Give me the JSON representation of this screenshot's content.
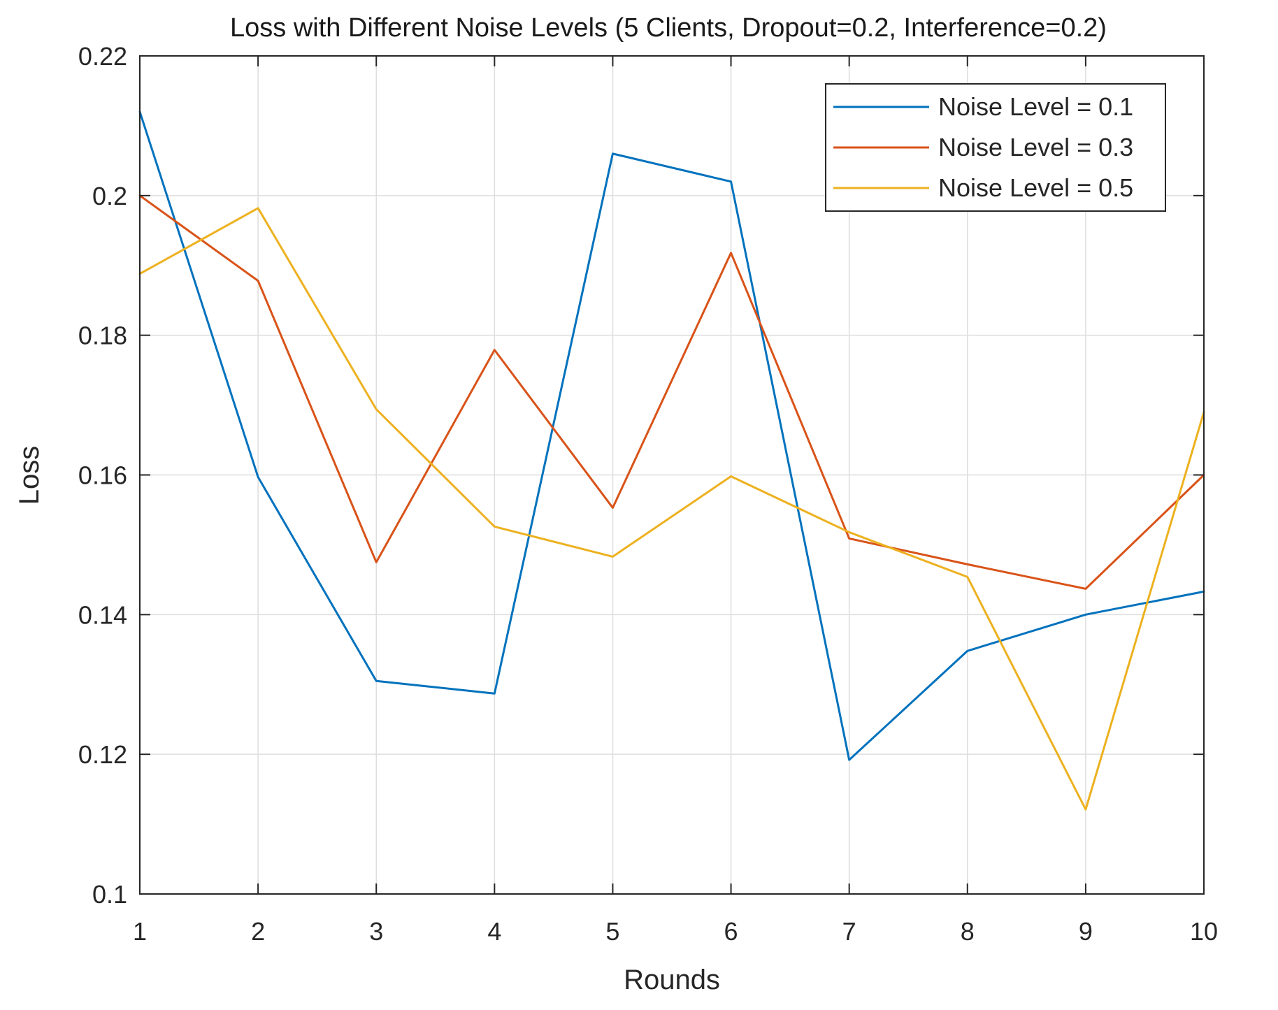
{
  "chart_data": {
    "type": "line",
    "title": "Loss with Different Noise Levels (5 Clients, Dropout=0.2, Interference=0.2)",
    "xlabel": "Rounds",
    "ylabel": "Loss",
    "x": [
      1,
      2,
      3,
      4,
      5,
      6,
      7,
      8,
      9,
      10
    ],
    "xlim": [
      1,
      10
    ],
    "ylim": [
      0.1,
      0.22
    ],
    "xticks": [
      1,
      2,
      3,
      4,
      5,
      6,
      7,
      8,
      9,
      10
    ],
    "xtick_labels": [
      "1",
      "2",
      "3",
      "4",
      "5",
      "6",
      "7",
      "8",
      "9",
      "10"
    ],
    "yticks": [
      0.1,
      0.12,
      0.14,
      0.16,
      0.18,
      0.2,
      0.22
    ],
    "ytick_labels": [
      "0.1",
      "0.12",
      "0.14",
      "0.16",
      "0.18",
      "0.2",
      "0.22"
    ],
    "grid": true,
    "legend_position": "top-right",
    "series": [
      {
        "name": "Noise Level = 0.1",
        "color": "#0072BD",
        "values": [
          0.212,
          0.1597,
          0.1305,
          0.1287,
          0.206,
          0.202,
          0.1192,
          0.1348,
          0.14,
          0.1433
        ]
      },
      {
        "name": "Noise Level = 0.3",
        "color": "#D95319",
        "values": [
          0.2,
          0.1878,
          0.1475,
          0.1779,
          0.1553,
          0.1918,
          0.1509,
          0.1472,
          0.1437,
          0.16
        ]
      },
      {
        "name": "Noise Level = 0.5",
        "color": "#EDB120",
        "values": [
          0.1888,
          0.1982,
          0.1694,
          0.1526,
          0.1483,
          0.1598,
          0.1518,
          0.1454,
          0.1121,
          0.169
        ]
      }
    ],
    "style": {
      "axis_color": "#262626",
      "grid_color": "#DEDEDE",
      "background": "#ffffff",
      "line_width": 3
    }
  }
}
